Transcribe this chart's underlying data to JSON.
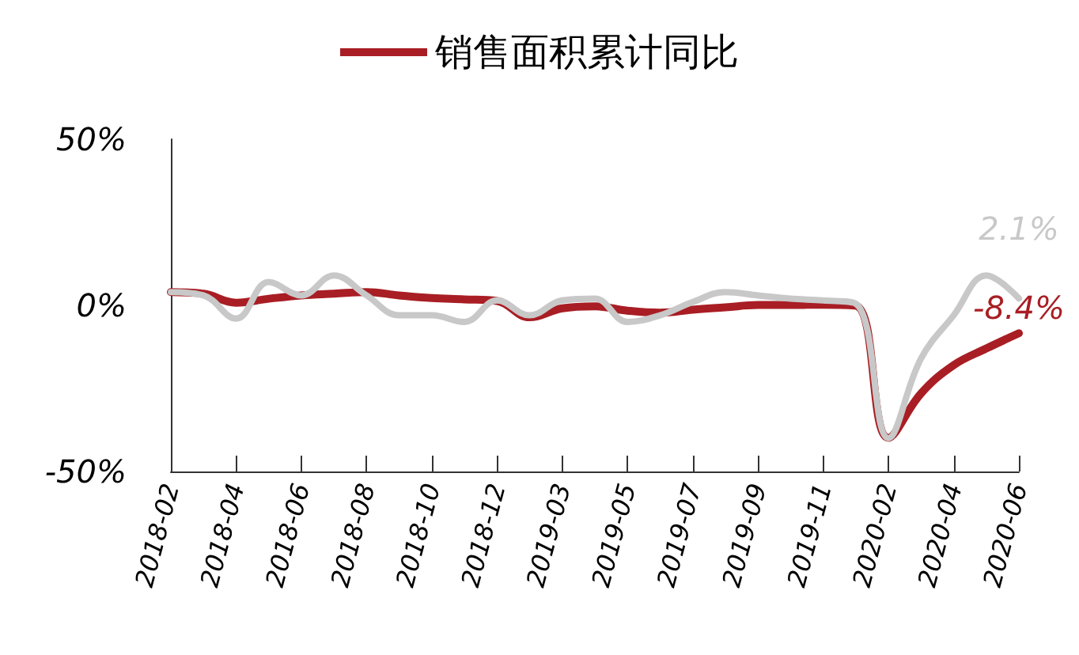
{
  "chart_data": {
    "type": "line",
    "categories": [
      "2018-02",
      null,
      "2018-04",
      null,
      "2018-06",
      null,
      "2018-08",
      null,
      "2018-10",
      null,
      "2018-12",
      null,
      "2019-03",
      null,
      "2019-05",
      null,
      "2019-07",
      null,
      "2019-09",
      null,
      "2019-11",
      null,
      "2020-02",
      null,
      "2020-04",
      null,
      "2020-06"
    ],
    "series": [
      {
        "name": "销售面积累计同比",
        "color": "#a81e24",
        "values": [
          4,
          3.5,
          0.8,
          2,
          3,
          3.5,
          4,
          3,
          2.2,
          1.8,
          1.3,
          -3.6,
          -0.9,
          -0.3,
          -1.6,
          -2.2,
          -1.3,
          -0.6,
          0.1,
          0.1,
          0.2,
          -0.1,
          -39.9,
          -26.5,
          -18,
          -13,
          -8.4
        ],
        "value_labels": [
          null,
          null,
          null,
          null,
          null,
          null,
          null,
          null,
          null,
          null,
          null,
          null,
          null,
          null,
          null,
          null,
          null,
          null,
          null,
          null,
          null,
          null,
          null,
          null,
          null,
          null,
          "-8.4%"
        ]
      },
      {
        "color": "#c8c8c8",
        "values": [
          4,
          3,
          -4,
          7,
          3,
          9,
          3,
          -3,
          -3,
          -5,
          1.5,
          -3,
          1.5,
          2,
          -5,
          -3,
          1,
          4,
          3,
          2,
          1.5,
          0.5,
          -40,
          -16,
          -3,
          9,
          2.1
        ],
        "value_labels": [
          null,
          null,
          null,
          null,
          null,
          null,
          null,
          null,
          null,
          null,
          null,
          null,
          null,
          null,
          null,
          null,
          null,
          null,
          null,
          null,
          null,
          null,
          null,
          null,
          null,
          null,
          "2.1%"
        ]
      }
    ],
    "ylim": [
      -50,
      50
    ],
    "yticks": [
      {
        "value": -50,
        "label": "-50%"
      },
      {
        "value": 0,
        "label": "0%"
      },
      {
        "value": 50,
        "label": "50%"
      }
    ],
    "grid": false,
    "legend": "top",
    "marker": "none",
    "line_style": "solid"
  }
}
